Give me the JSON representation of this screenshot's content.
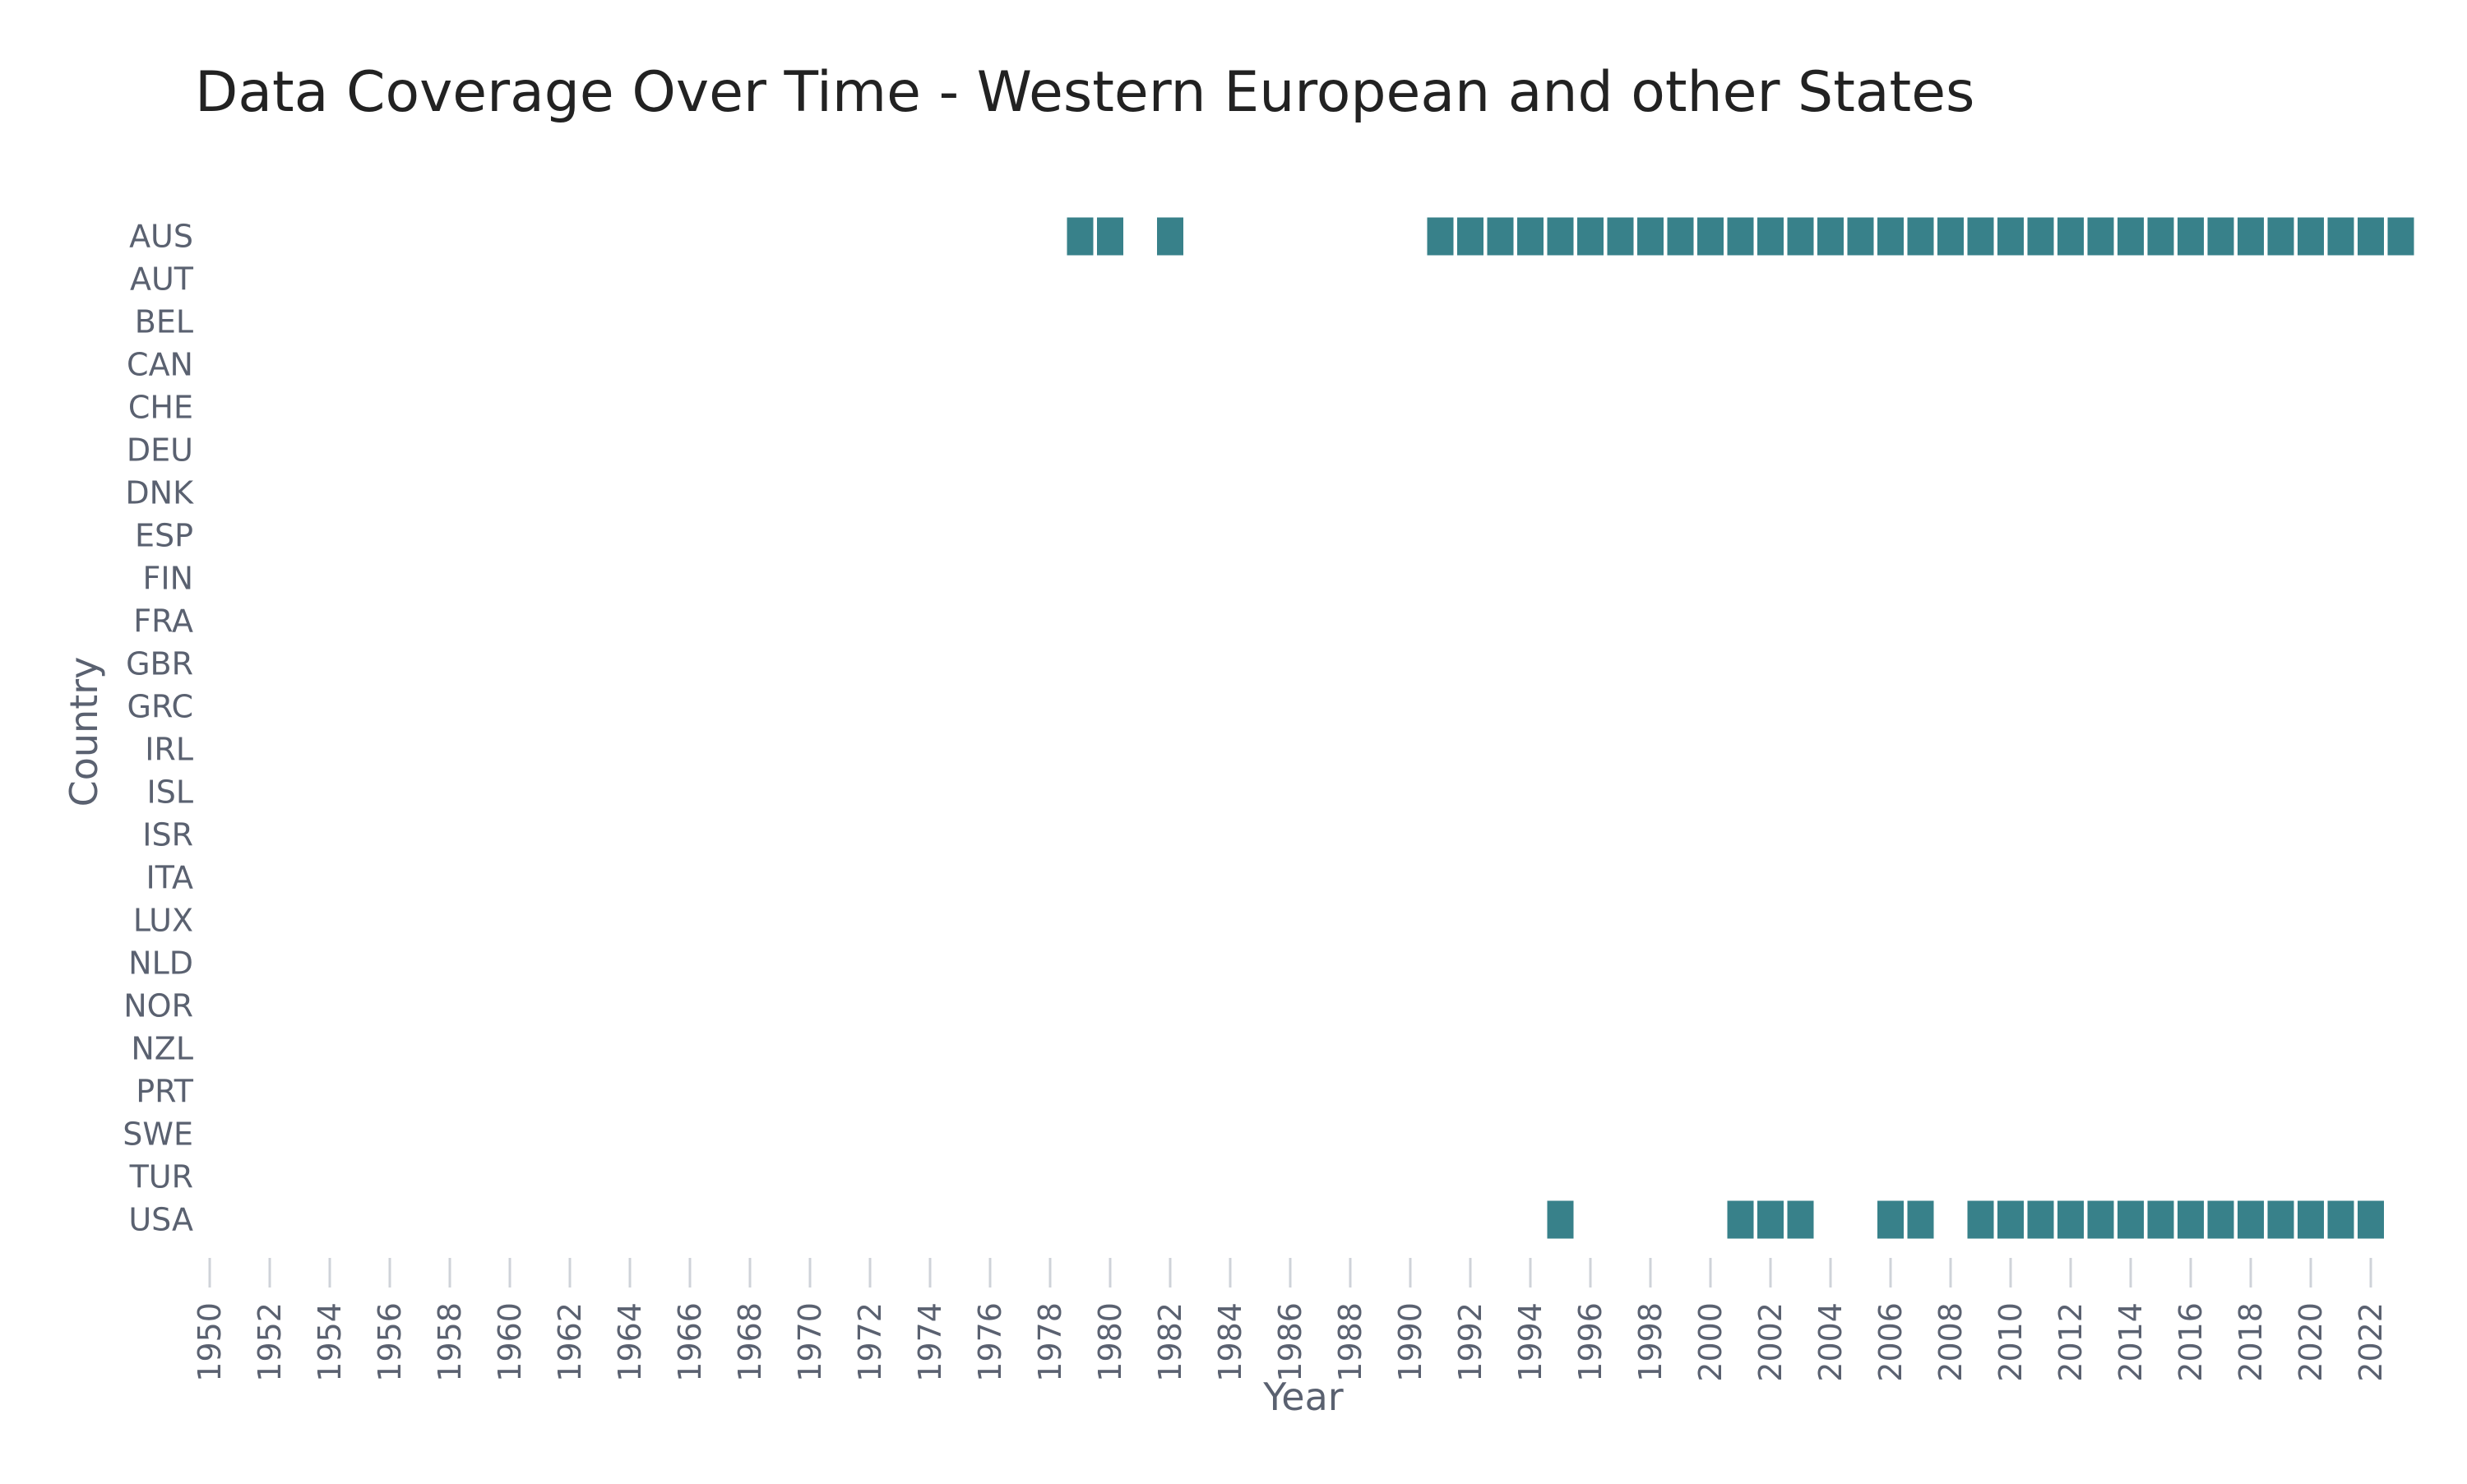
{
  "chart_data": {
    "type": "heatmap",
    "title": "Data Coverage Over Time - Western European and other States",
    "xlabel": "Year",
    "ylabel": "Country",
    "xlim": [
      1950,
      2023
    ],
    "x_tick_labels": [
      "1950",
      "1952",
      "1954",
      "1956",
      "1958",
      "1960",
      "1962",
      "1964",
      "1966",
      "1968",
      "1970",
      "1972",
      "1974",
      "1976",
      "1978",
      "1980",
      "1982",
      "1984",
      "1986",
      "1988",
      "1990",
      "1992",
      "1994",
      "1996",
      "1998",
      "2000",
      "2002",
      "2004",
      "2006",
      "2008",
      "2010",
      "2012",
      "2014",
      "2016",
      "2018",
      "2020",
      "2022"
    ],
    "categories": [
      "AUS",
      "AUT",
      "BEL",
      "CAN",
      "CHE",
      "DEU",
      "DNK",
      "ESP",
      "FIN",
      "FRA",
      "GBR",
      "GRC",
      "IRL",
      "ISL",
      "ISR",
      "ITA",
      "LUX",
      "NLD",
      "NOR",
      "NZL",
      "PRT",
      "SWE",
      "TUR",
      "USA"
    ],
    "grid": false,
    "cell_color": "#38818a",
    "coverage": [
      {
        "country": "AUS",
        "years": [
          1979,
          1980,
          1982,
          1991,
          1992,
          1993,
          1994,
          1995,
          1996,
          1997,
          1998,
          1999,
          2000,
          2001,
          2002,
          2003,
          2004,
          2005,
          2006,
          2007,
          2008,
          2009,
          2010,
          2011,
          2012,
          2013,
          2014,
          2015,
          2016,
          2017,
          2018,
          2019,
          2020,
          2021,
          2022,
          2023
        ]
      },
      {
        "country": "USA",
        "years": [
          1995,
          2001,
          2002,
          2003,
          2006,
          2007,
          2009,
          2010,
          2011,
          2012,
          2013,
          2014,
          2015,
          2016,
          2017,
          2018,
          2019,
          2020,
          2021,
          2022
        ]
      }
    ]
  }
}
